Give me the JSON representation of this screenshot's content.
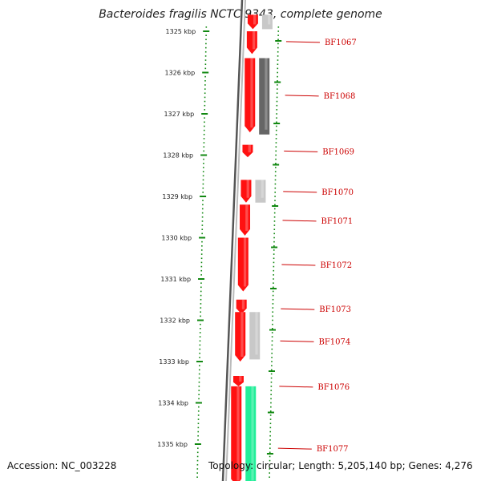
{
  "title": "Bacteroides fragilis NCTC 9343, complete genome",
  "footer": {
    "accession": "Accession: NC_003228",
    "summary": "Topology: circular; Length: 5,205,140 bp; Genes: 4,276"
  },
  "colors": {
    "forward_gene": "#ff1111",
    "reverse_gene_light": "#c8c8c8",
    "reverse_gene_dark": "#666666",
    "green_feature": "#22ee99",
    "scale_ticks": "#118811",
    "backbone": "#888888",
    "label": "#cc0000"
  },
  "scale": {
    "unit": "kbp",
    "ticks": [
      {
        "kbp": 1325,
        "label": "1325 kbp"
      },
      {
        "kbp": 1326,
        "label": "1326 kbp"
      },
      {
        "kbp": 1327,
        "label": "1327 kbp"
      },
      {
        "kbp": 1328,
        "label": "1328 kbp"
      },
      {
        "kbp": 1329,
        "label": "1329 kbp"
      },
      {
        "kbp": 1330,
        "label": "1330 kbp"
      },
      {
        "kbp": 1331,
        "label": "1331 kbp"
      },
      {
        "kbp": 1332,
        "label": "1332 kbp"
      },
      {
        "kbp": 1333,
        "label": "1333 kbp"
      },
      {
        "kbp": 1334,
        "label": "1334 kbp"
      },
      {
        "kbp": 1335,
        "label": "1335 kbp"
      }
    ]
  },
  "features": [
    {
      "strand": "+",
      "start_kbp": 1324.6,
      "end_kbp": 1324.95,
      "color": "forward_gene"
    },
    {
      "strand": "-",
      "start_kbp": 1324.6,
      "end_kbp": 1324.95,
      "color": "reverse_gene_light"
    },
    {
      "strand": "+",
      "start_kbp": 1325.0,
      "end_kbp": 1325.55,
      "color": "forward_gene"
    },
    {
      "strand": "+",
      "start_kbp": 1325.65,
      "end_kbp": 1327.45,
      "color": "forward_gene"
    },
    {
      "strand": "-",
      "start_kbp": 1325.65,
      "end_kbp": 1327.5,
      "color": "reverse_gene_dark"
    },
    {
      "strand": "+",
      "start_kbp": 1327.75,
      "end_kbp": 1328.05,
      "color": "forward_gene"
    },
    {
      "strand": "+",
      "start_kbp": 1328.6,
      "end_kbp": 1329.15,
      "color": "forward_gene"
    },
    {
      "strand": "-",
      "start_kbp": 1328.6,
      "end_kbp": 1329.15,
      "color": "reverse_gene_light"
    },
    {
      "strand": "+",
      "start_kbp": 1329.2,
      "end_kbp": 1329.95,
      "color": "forward_gene"
    },
    {
      "strand": "+",
      "start_kbp": 1330.0,
      "end_kbp": 1331.3,
      "color": "forward_gene"
    },
    {
      "strand": "+",
      "start_kbp": 1331.5,
      "end_kbp": 1331.85,
      "color": "forward_gene"
    },
    {
      "strand": "+",
      "start_kbp": 1331.8,
      "end_kbp": 1333.0,
      "color": "forward_gene"
    },
    {
      "strand": "-",
      "start_kbp": 1331.8,
      "end_kbp": 1332.95,
      "color": "reverse_gene_light"
    },
    {
      "strand": "+",
      "start_kbp": 1333.35,
      "end_kbp": 1333.6,
      "color": "forward_gene"
    },
    {
      "strand": "+",
      "start_kbp": 1333.6,
      "end_kbp": 1336.0,
      "color": "forward_gene"
    },
    {
      "strand": "-",
      "start_kbp": 1333.6,
      "end_kbp": 1336.0,
      "color": "green_feature"
    }
  ],
  "genes": [
    {
      "name": "BF1067",
      "kbp": 1325.25,
      "label_kbp": 1325.25
    },
    {
      "name": "BF1068",
      "kbp": 1326.55,
      "label_kbp": 1326.55
    },
    {
      "name": "BF1069",
      "kbp": 1327.9,
      "label_kbp": 1327.9
    },
    {
      "name": "BF1070",
      "kbp": 1328.88,
      "label_kbp": 1328.88
    },
    {
      "name": "BF1071",
      "kbp": 1329.58,
      "label_kbp": 1329.58
    },
    {
      "name": "BF1072",
      "kbp": 1330.65,
      "label_kbp": 1330.65
    },
    {
      "name": "BF1073",
      "kbp": 1331.72,
      "label_kbp": 1331.72
    },
    {
      "name": "BF1074",
      "kbp": 1332.5,
      "label_kbp": 1332.5
    },
    {
      "name": "BF1076",
      "kbp": 1333.6,
      "label_kbp": 1333.6
    },
    {
      "name": "BF1077",
      "kbp": 1335.1,
      "label_kbp": 1335.1
    }
  ]
}
